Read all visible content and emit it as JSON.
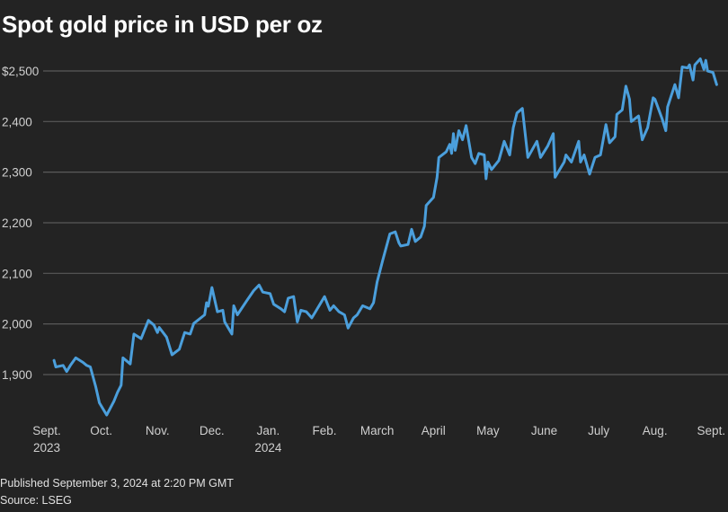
{
  "chart_data": {
    "type": "line",
    "title": "Spot gold price in USD per oz",
    "xlabel": "",
    "ylabel": "",
    "x_unit": "days since Sept. 1, 2023",
    "ylim": [
      1815,
      2530
    ],
    "y_ticks": [
      1900,
      2000,
      2100,
      2200,
      2300,
      2400,
      2500
    ],
    "y_tick_labels": [
      "1,900",
      "2,000",
      "2,100",
      "2,200",
      "2,300",
      "2,400",
      "$2,500"
    ],
    "grid": true,
    "line_color": "#4b9fdc",
    "x_ticks": [
      {
        "day": 0,
        "label": "Sept.",
        "year": "2023"
      },
      {
        "day": 30,
        "label": "Oct."
      },
      {
        "day": 61,
        "label": "Nov."
      },
      {
        "day": 91,
        "label": "Dec."
      },
      {
        "day": 122,
        "label": "Jan.",
        "year": "2024"
      },
      {
        "day": 153,
        "label": "Feb."
      },
      {
        "day": 182,
        "label": "March"
      },
      {
        "day": 213,
        "label": "April"
      },
      {
        "day": 243,
        "label": "May"
      },
      {
        "day": 274,
        "label": "June"
      },
      {
        "day": 304,
        "label": "July"
      },
      {
        "day": 335,
        "label": "Aug."
      },
      {
        "day": 366,
        "label": "Sept."
      }
    ],
    "series": [
      {
        "name": "Spot gold",
        "x": [
          4,
          5,
          9,
          11,
          13,
          16,
          20,
          22,
          24,
          27,
          29,
          33,
          37,
          39,
          41,
          42,
          46,
          48,
          52,
          56,
          59,
          61,
          62,
          66,
          69,
          73,
          76,
          79,
          81,
          87,
          88,
          89,
          91,
          94,
          97,
          98,
          102,
          103,
          105,
          110,
          114,
          117,
          119,
          123,
          125,
          129,
          131,
          133,
          136,
          138,
          140,
          143,
          146,
          148,
          153,
          155,
          156,
          158,
          161,
          164,
          166,
          169,
          171,
          174,
          178,
          180,
          182,
          185,
          189,
          192,
          194,
          195,
          199,
          201,
          203,
          206,
          208,
          209,
          213,
          215,
          216,
          220,
          222,
          223,
          224,
          225,
          227,
          229,
          231,
          234,
          236,
          238,
          241,
          242,
          243,
          245,
          249,
          252,
          255,
          257,
          259,
          262,
          265,
          270,
          272,
          276,
          279,
          280,
          285,
          286,
          289,
          293,
          294,
          296,
          299,
          302,
          305,
          308,
          310,
          313,
          314,
          317,
          319,
          321,
          322,
          326,
          328,
          331,
          334,
          335,
          339,
          341,
          342,
          346,
          348,
          350,
          353,
          354,
          356,
          357,
          360,
          362,
          363,
          364,
          367,
          369
        ],
        "y": [
          1928,
          1915,
          1918,
          1906,
          1918,
          1933,
          1924,
          1918,
          1915,
          1876,
          1844,
          1820,
          1847,
          1865,
          1879,
          1933,
          1921,
          1980,
          1971,
          2007,
          1998,
          1983,
          1993,
          1974,
          1939,
          1950,
          1983,
          1980,
          2001,
          2018,
          2042,
          2035,
          2072,
          2024,
          2027,
          2004,
          1980,
          2036,
          2018,
          2045,
          2066,
          2077,
          2063,
          2060,
          2039,
          2030,
          2024,
          2051,
          2054,
          2004,
          2027,
          2024,
          2012,
          2024,
          2054,
          2036,
          2027,
          2036,
          2024,
          2018,
          1992,
          2012,
          2018,
          2036,
          2030,
          2042,
          2083,
          2125,
          2178,
          2182,
          2160,
          2154,
          2157,
          2187,
          2163,
          2172,
          2193,
          2234,
          2250,
          2290,
          2329,
          2340,
          2355,
          2337,
          2376,
          2343,
          2382,
          2364,
          2392,
          2329,
          2317,
          2337,
          2334,
          2287,
          2320,
          2305,
          2323,
          2361,
          2334,
          2388,
          2417,
          2426,
          2329,
          2361,
          2329,
          2352,
          2376,
          2290,
          2320,
          2334,
          2320,
          2361,
          2320,
          2334,
          2296,
          2329,
          2334,
          2394,
          2358,
          2370,
          2414,
          2423,
          2470,
          2444,
          2400,
          2411,
          2364,
          2388,
          2447,
          2444,
          2405,
          2382,
          2429,
          2473,
          2447,
          2508,
          2506,
          2512,
          2482,
          2512,
          2524,
          2503,
          2521,
          2500,
          2497,
          2473
        ]
      }
    ]
  },
  "footer": {
    "published": "Published September 3, 2024 at 2:20 PM GMT",
    "source": "Source: LSEG"
  }
}
